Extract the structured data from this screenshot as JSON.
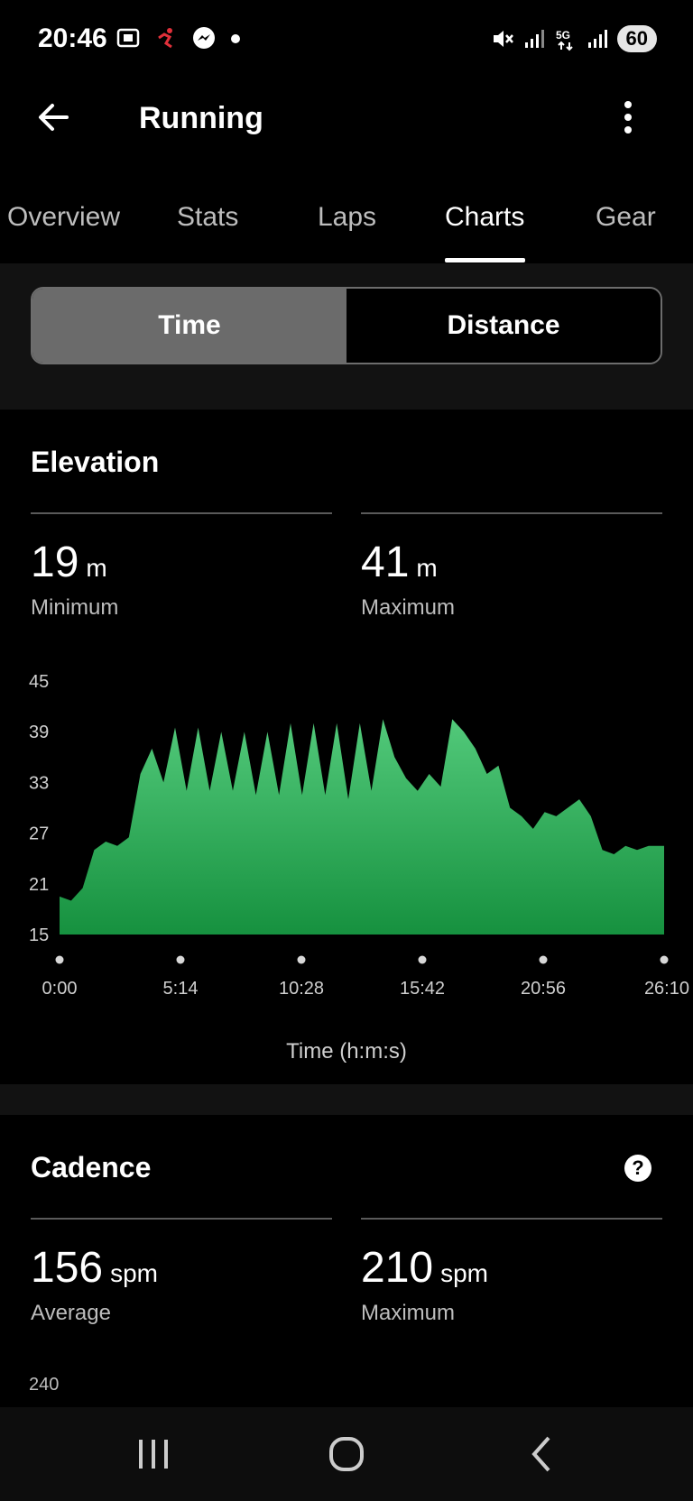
{
  "status_bar": {
    "time": "20:46",
    "battery": "60"
  },
  "app_bar": {
    "title": "Running"
  },
  "tabs": [
    {
      "label": "Overview"
    },
    {
      "label": "Stats"
    },
    {
      "label": "Laps"
    },
    {
      "label": "Charts"
    },
    {
      "label": "Gear"
    }
  ],
  "active_tab": "Charts",
  "segment": {
    "time_label": "Time",
    "distance_label": "Distance",
    "selected": "Time"
  },
  "elevation": {
    "title": "Elevation",
    "min_value": "19",
    "min_unit": "m",
    "min_label": "Minimum",
    "max_value": "41",
    "max_unit": "m",
    "max_label": "Maximum",
    "x_axis_title": "Time (h:m:s)"
  },
  "cadence": {
    "title": "Cadence",
    "avg_value": "156",
    "avg_unit": "spm",
    "avg_label": "Average",
    "max_value": "210",
    "max_unit": "spm",
    "max_label": "Maximum",
    "y_top_tick": "240"
  },
  "chart_data": {
    "type": "area",
    "xlabel": "Time (h:m:s)",
    "ylabel": "",
    "ylim": [
      15,
      45
    ],
    "y_ticks": [
      "45",
      "39",
      "33",
      "27",
      "21",
      "15"
    ],
    "x_ticks": [
      "0:00",
      "5:14",
      "10:28",
      "15:42",
      "20:56",
      "26:10"
    ],
    "x_minutes": [
      0,
      0.5,
      1,
      1.5,
      2,
      2.5,
      3,
      3.5,
      4,
      4.5,
      5,
      5.5,
      6,
      6.5,
      7,
      7.5,
      8,
      8.5,
      9,
      9.5,
      10,
      10.5,
      11,
      11.5,
      12,
      12.5,
      13,
      13.5,
      14,
      14.5,
      15,
      15.5,
      16,
      16.5,
      17,
      17.5,
      18,
      18.5,
      19,
      19.5,
      20,
      20.5,
      21,
      21.5,
      22,
      22.5,
      23,
      23.5,
      24,
      24.5,
      25,
      25.5,
      26,
      26.17
    ],
    "values": [
      19.5,
      19,
      20.5,
      25,
      26,
      25.5,
      26.5,
      34,
      37,
      33,
      39.5,
      32,
      39.5,
      32,
      39,
      32,
      39,
      31.5,
      39,
      31.5,
      40,
      31.5,
      40,
      31.5,
      40,
      31,
      40,
      32,
      40.5,
      36,
      33.5,
      32,
      34,
      32.5,
      40.5,
      39,
      37,
      34,
      35,
      30,
      29,
      27.5,
      29.5,
      29,
      30,
      31,
      29,
      25,
      24.5,
      25.5,
      25,
      25.5,
      25.5,
      25.5
    ],
    "color": "#2ab55a"
  }
}
